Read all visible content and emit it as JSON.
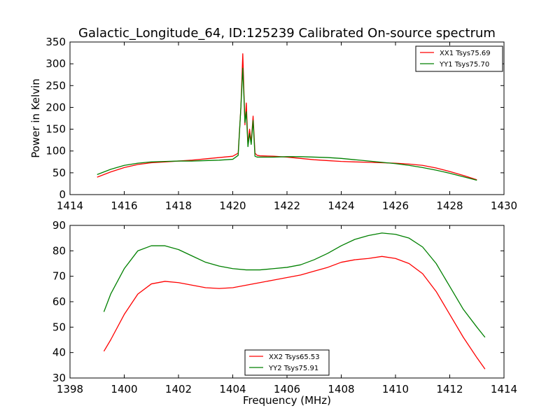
{
  "title": "Galactic_Longitude_64, ID:125239 Calibrated On-source spectrum",
  "xlabel_bottom": "Frequency (MHz)",
  "ylabel_top": "Power in Kelvin",
  "chart_data": [
    {
      "type": "line",
      "xlim": [
        1414,
        1430
      ],
      "ylim": [
        0,
        350
      ],
      "xticks": [
        "1414",
        "1416",
        "1418",
        "1420",
        "1422",
        "1424",
        "1426",
        "1428",
        "1430"
      ],
      "yticks": [
        "0",
        "50",
        "100",
        "150",
        "200",
        "250",
        "300",
        "350"
      ],
      "legend_position": "top-right",
      "series": [
        {
          "name": "XX1 Tsys75.69",
          "color": "#ff0000",
          "x": [
            1415.0,
            1415.5,
            1416.0,
            1416.5,
            1417.0,
            1417.5,
            1418.0,
            1418.5,
            1419.0,
            1419.5,
            1420.0,
            1420.2,
            1420.3,
            1420.37,
            1420.45,
            1420.5,
            1420.56,
            1420.62,
            1420.68,
            1420.75,
            1420.82,
            1420.9,
            1421.0,
            1421.5,
            1422.0,
            1422.5,
            1423.0,
            1423.5,
            1424.0,
            1424.5,
            1425.0,
            1425.5,
            1426.0,
            1426.5,
            1427.0,
            1427.5,
            1428.0,
            1428.5,
            1429.0
          ],
          "y": [
            40,
            52,
            62,
            69,
            73,
            75,
            77,
            79,
            82,
            85,
            88,
            95,
            200,
            323,
            160,
            210,
            115,
            150,
            120,
            180,
            95,
            90,
            89,
            88,
            86,
            83,
            80,
            78,
            76,
            75,
            74,
            73,
            72,
            70,
            67,
            61,
            53,
            44,
            34
          ]
        },
        {
          "name": "YY1 Tsys75.70",
          "color": "#008000",
          "x": [
            1415.0,
            1415.5,
            1416.0,
            1416.5,
            1417.0,
            1417.5,
            1418.0,
            1418.5,
            1419.0,
            1419.5,
            1420.0,
            1420.2,
            1420.3,
            1420.37,
            1420.45,
            1420.5,
            1420.56,
            1420.62,
            1420.68,
            1420.75,
            1420.82,
            1420.9,
            1421.0,
            1421.5,
            1422.0,
            1422.5,
            1423.0,
            1423.5,
            1424.0,
            1424.5,
            1425.0,
            1425.5,
            1426.0,
            1426.5,
            1427.0,
            1427.5,
            1428.0,
            1428.5,
            1429.0
          ],
          "y": [
            46,
            58,
            67,
            72,
            75,
            76,
            77,
            77,
            78,
            79,
            81,
            90,
            200,
            290,
            165,
            190,
            110,
            140,
            115,
            170,
            88,
            86,
            86,
            86,
            87,
            87,
            86,
            85,
            83,
            80,
            77,
            74,
            71,
            67,
            62,
            56,
            49,
            41,
            33
          ]
        }
      ]
    },
    {
      "type": "line",
      "xlabel": "Frequency (MHz)",
      "xlim": [
        1398,
        1414
      ],
      "ylim": [
        30,
        90
      ],
      "xticks": [
        "1398",
        "1400",
        "1402",
        "1404",
        "1406",
        "1408",
        "1410",
        "1412",
        "1414"
      ],
      "yticks": [
        "30",
        "40",
        "50",
        "60",
        "70",
        "80",
        "90"
      ],
      "legend_position": "bottom-center",
      "series": [
        {
          "name": "XX2 Tsys65.53",
          "color": "#ff0000",
          "x": [
            1399.25,
            1399.5,
            1400.0,
            1400.5,
            1401.0,
            1401.5,
            1402.0,
            1402.5,
            1403.0,
            1403.5,
            1404.0,
            1404.5,
            1405.0,
            1405.5,
            1406.0,
            1406.5,
            1407.0,
            1407.5,
            1408.0,
            1408.5,
            1409.0,
            1409.5,
            1410.0,
            1410.5,
            1411.0,
            1411.5,
            1412.0,
            1412.5,
            1413.0,
            1413.3
          ],
          "y": [
            40.5,
            45,
            55,
            63,
            67,
            68,
            67.5,
            66.5,
            65.5,
            65.2,
            65.5,
            66.5,
            67.5,
            68.5,
            69.5,
            70.5,
            72,
            73.5,
            75.5,
            76.5,
            77,
            77.8,
            77,
            75,
            71,
            64,
            55,
            46,
            38,
            33.5
          ]
        },
        {
          "name": "YY2 Tsys75.91",
          "color": "#008000",
          "x": [
            1399.25,
            1399.5,
            1400.0,
            1400.5,
            1401.0,
            1401.5,
            1402.0,
            1402.5,
            1403.0,
            1403.5,
            1404.0,
            1404.5,
            1405.0,
            1405.5,
            1406.0,
            1406.5,
            1407.0,
            1407.5,
            1408.0,
            1408.5,
            1409.0,
            1409.5,
            1410.0,
            1410.5,
            1411.0,
            1411.5,
            1412.0,
            1412.5,
            1413.0,
            1413.3
          ],
          "y": [
            56,
            63,
            73,
            80,
            82,
            82,
            80.5,
            78,
            75.5,
            74,
            73,
            72.5,
            72.5,
            73,
            73.5,
            74.5,
            76.5,
            79,
            82,
            84.5,
            86,
            87,
            86.5,
            85,
            81.5,
            75,
            66,
            57,
            50,
            46
          ]
        }
      ]
    }
  ]
}
